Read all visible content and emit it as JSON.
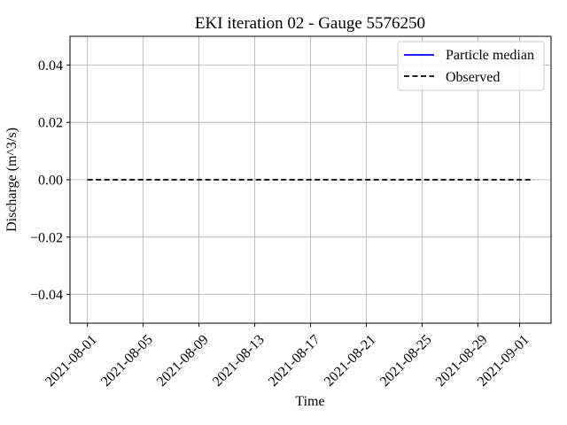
{
  "chart_data": {
    "type": "line",
    "title": "EKI iteration 02 - Gauge 5576250",
    "xlabel": "Time",
    "ylabel": "Discharge (m^3/s)",
    "ylim": [
      -0.05,
      0.05
    ],
    "xlim": [
      "2021-07-30T18:00",
      "2021-09-03T06:00"
    ],
    "x_ticks": [
      "2021-08-01",
      "2021-08-05",
      "2021-08-09",
      "2021-08-13",
      "2021-08-17",
      "2021-08-21",
      "2021-08-25",
      "2021-08-29",
      "2021-09-01"
    ],
    "y_ticks": [
      0.04,
      0.02,
      0.0,
      -0.02,
      -0.04
    ],
    "y_tick_labels": [
      "0.04",
      "0.02",
      "0.00",
      "−0.02",
      "−0.04"
    ],
    "grid": true,
    "legend": {
      "position": "top-right"
    },
    "series": [
      {
        "name": "Particle median",
        "color": "#0000ff",
        "style": "solid",
        "x": [],
        "y": []
      },
      {
        "name": "Observed",
        "color": "#000000",
        "style": "dashed",
        "x": [
          "2021-08-01",
          "2021-09-02"
        ],
        "y": [
          0.0,
          0.0
        ]
      }
    ]
  }
}
